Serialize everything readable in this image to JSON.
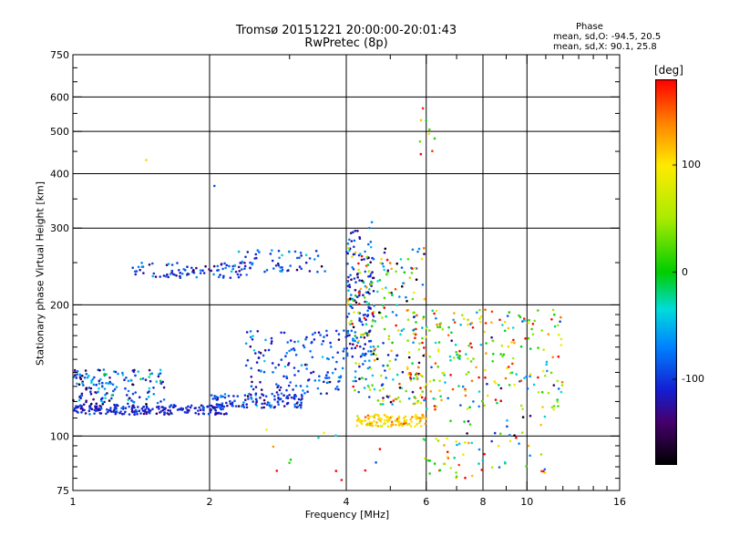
{
  "chart_data": {
    "type": "scatter",
    "title": "Tromsø 20151221 20:00:00-20:01:43",
    "subtitle": "RwPretec (8p)",
    "xlabel": "Frequency [MHz]",
    "ylabel": "Stationary phase Virtual Height [km]",
    "x_scale": "log",
    "y_scale": "log",
    "xlim": [
      1,
      16
    ],
    "ylim": [
      75,
      750
    ],
    "x_ticks": [
      1,
      2,
      4,
      6,
      8,
      10,
      16
    ],
    "y_ticks": [
      75,
      100,
      200,
      300,
      400,
      500,
      600,
      750
    ],
    "grid": true,
    "stats": {
      "title": "Phase",
      "line_o": "mean, sd,O: -94.5, 20.5",
      "line_x": "mean, sd,X: 90.1, 25.8"
    },
    "colorbar": {
      "unit": "[deg]",
      "ticks": [
        "100",
        "0",
        "-100"
      ],
      "tick_values": [
        100,
        0,
        -100
      ],
      "range": [
        -180,
        180
      ]
    },
    "series": [
      {
        "clusters": [
          {
            "x_range": [
              1.0,
              2.2
            ],
            "y_range": [
              112,
              118
            ],
            "phase_mean": -110,
            "phase_sd": 15,
            "count": 200
          },
          {
            "x_range": [
              1.0,
              1.6
            ],
            "y_range": [
              118,
              142
            ],
            "phase_mean": -95,
            "phase_sd": 40,
            "count": 150
          },
          {
            "x_range": [
              1.35,
              2.5
            ],
            "y_range": [
              230,
              250
            ],
            "phase_mean": -100,
            "phase_sd": 25,
            "count": 90
          },
          {
            "x_range": [
              2.3,
              3.6
            ],
            "y_range": [
              238,
              268
            ],
            "phase_mean": -90,
            "phase_sd": 30,
            "count": 55
          },
          {
            "x_range": [
              2.0,
              3.2
            ],
            "y_range": [
              116,
              125
            ],
            "phase_mean": -100,
            "phase_sd": 25,
            "count": 120
          },
          {
            "x_range": [
              2.4,
              4.0
            ],
            "y_range": [
              125,
              175
            ],
            "phase_mean": -95,
            "phase_sd": 30,
            "count": 150
          },
          {
            "x_range": [
              4.0,
              4.6
            ],
            "y_range": [
              150,
              310
            ],
            "phase_mean": -100,
            "phase_sd": 25,
            "count": 140
          },
          {
            "x_range": [
              4.0,
              6.0
            ],
            "y_range": [
              118,
              270
            ],
            "phase_mean": 20,
            "phase_sd": 110,
            "count": 260
          },
          {
            "x_range": [
              4.2,
              6.0
            ],
            "y_range": [
              105,
              112
            ],
            "phase_mean": 110,
            "phase_sd": 20,
            "count": 120
          },
          {
            "x_range": [
              5.6,
              12.0
            ],
            "y_range": [
              115,
              195
            ],
            "phase_mean": 60,
            "phase_sd": 90,
            "count": 240
          },
          {
            "x_range": [
              5.8,
              11.0
            ],
            "y_range": [
              80,
              112
            ],
            "phase_mean": 40,
            "phase_sd": 110,
            "count": 60
          },
          {
            "x_range": [
              2.6,
              8.0
            ],
            "y_range": [
              78,
              105
            ],
            "phase_mean": 60,
            "phase_sd": 90,
            "count": 25
          },
          {
            "x_range": [
              5.8,
              6.5
            ],
            "y_range": [
              350,
              560
            ],
            "phase_mean": 80,
            "phase_sd": 70,
            "count": 6
          }
        ],
        "points": [
          {
            "x": 1.45,
            "y": 430,
            "phase": 110
          },
          {
            "x": 2.05,
            "y": 375,
            "phase": -90
          },
          {
            "x": 5.9,
            "y": 565,
            "phase": 170
          },
          {
            "x": 6.1,
            "y": 505,
            "phase": 20
          },
          {
            "x": 6.0,
            "y": 530,
            "phase": -10
          }
        ]
      }
    ]
  }
}
